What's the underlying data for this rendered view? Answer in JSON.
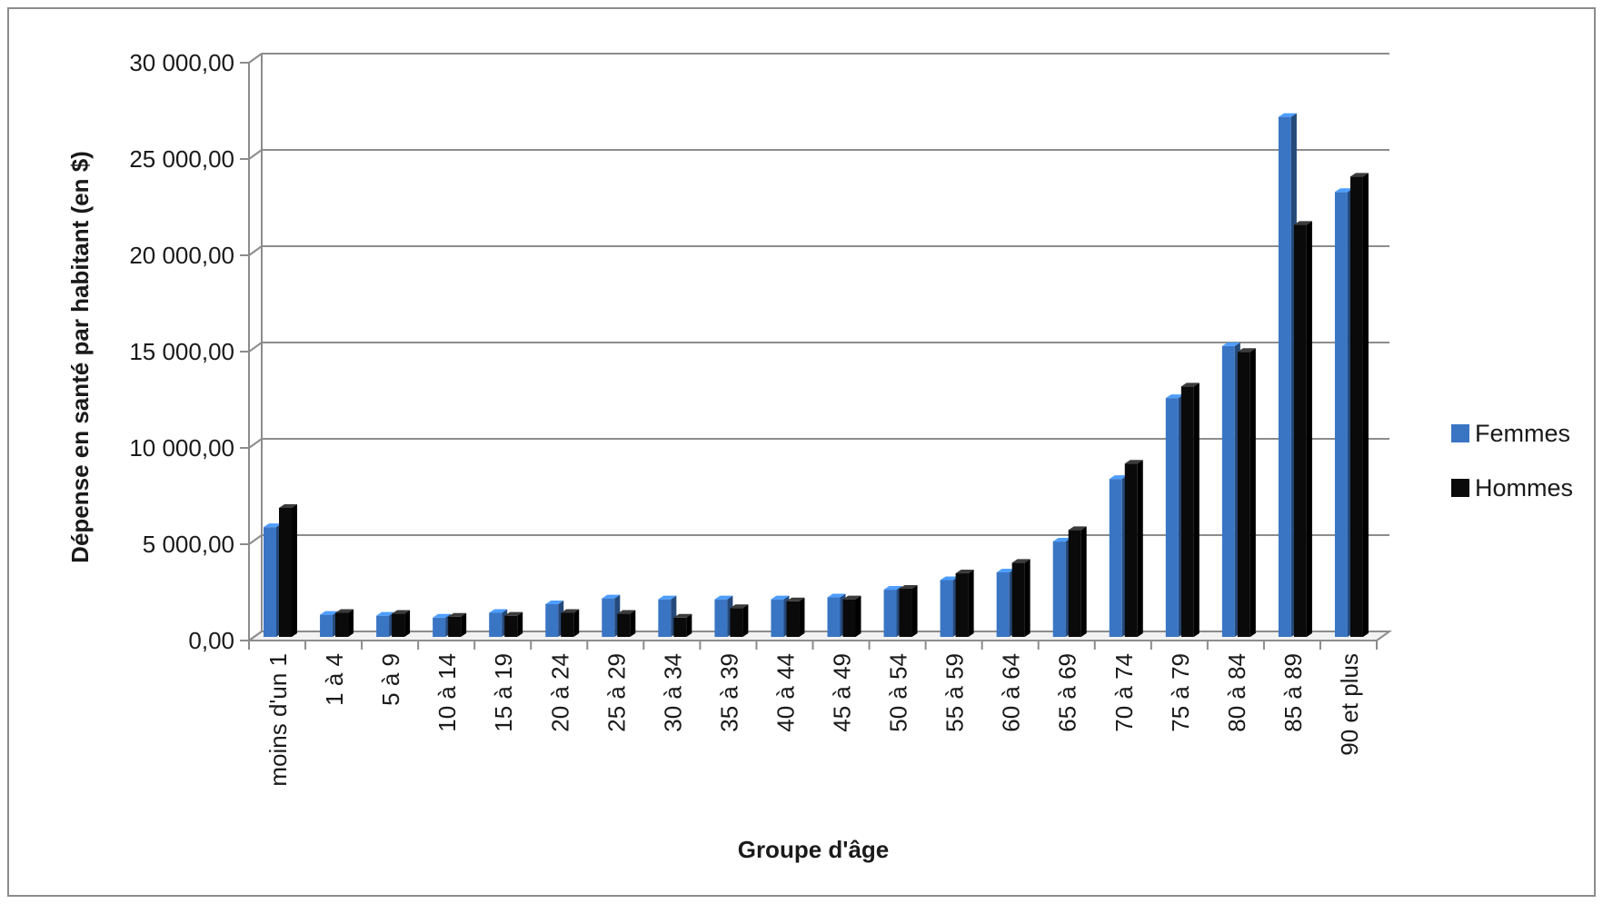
{
  "chart_data": {
    "type": "bar",
    "title": "",
    "xlabel": "Groupe d'âge",
    "ylabel": "Dépense en santé par habitant (en $)",
    "ylim": [
      0,
      30000
    ],
    "y_ticks": [
      "0,00",
      "5 000,00",
      "10 000,00",
      "15 000,00",
      "20 000,00",
      "25 000,00",
      "30 000,00"
    ],
    "y_tick_values": [
      0,
      5000,
      10000,
      15000,
      20000,
      25000,
      30000
    ],
    "grid": true,
    "legend_position": "right",
    "style": "3d-clustered-column",
    "categories": [
      "moins d'un 1",
      "1 à 4",
      "5 à 9",
      "10 à 14",
      "15 à 19",
      "20 à 24",
      "25 à 29",
      "30 à 34",
      "35 à 39",
      "40 à 44",
      "45 à 49",
      "50 à 54",
      "55 à 59",
      "60 à 64",
      "65 à 69",
      "70 à 74",
      "75 à 79",
      "80 à 84",
      "85 à 89",
      "90 et plus"
    ],
    "series": [
      {
        "name": "Femmes",
        "color": "#3a75c4",
        "values": [
          5700,
          1150,
          1100,
          1000,
          1250,
          1700,
          2000,
          1950,
          1950,
          1950,
          2050,
          2450,
          2950,
          3350,
          4950,
          8200,
          12400,
          15100,
          27000,
          23100
        ]
      },
      {
        "name": "Hommes",
        "color": "#0a0a0a",
        "values": [
          6700,
          1250,
          1200,
          1050,
          1100,
          1250,
          1200,
          1000,
          1500,
          1850,
          1950,
          2500,
          3300,
          3850,
          5550,
          9000,
          13000,
          14800,
          21400,
          23900
        ]
      }
    ]
  }
}
